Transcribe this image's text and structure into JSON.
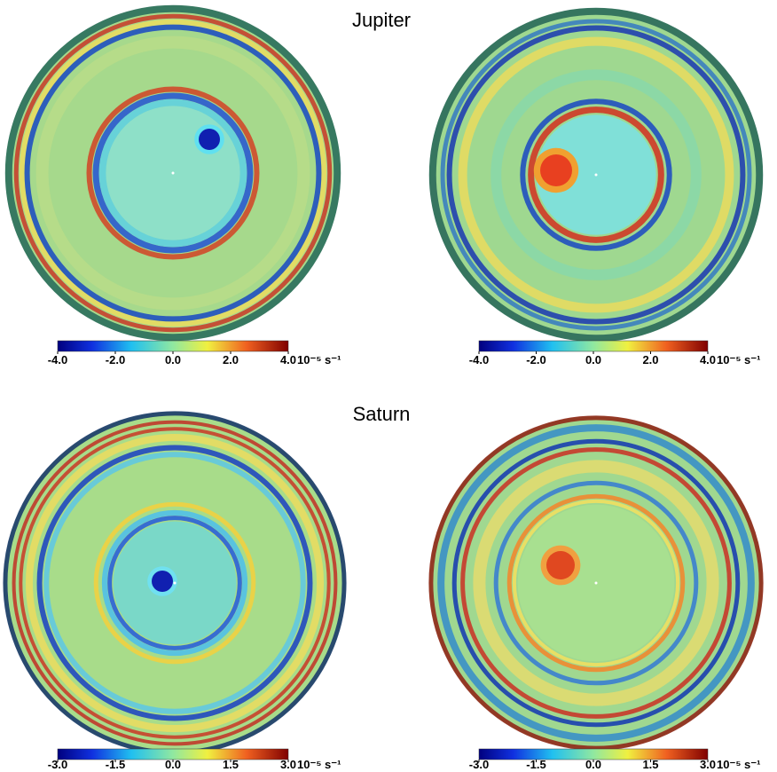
{
  "sections": [
    {
      "title": "Jupiter",
      "panels": [
        {
          "colorbar": {
            "range": [
              -4,
              4
            ],
            "ticks": [
              {
                "value": -4,
                "label": "-4.0"
              },
              {
                "value": -2,
                "label": "-2.0"
              },
              {
                "value": 0,
                "label": "0.0"
              },
              {
                "value": 2,
                "label": "2.0"
              },
              {
                "value": 4,
                "label": "4.0"
              }
            ],
            "unit": "10⁻⁵ s⁻¹"
          }
        },
        {
          "colorbar": {
            "range": [
              -4,
              4
            ],
            "ticks": [
              {
                "value": -4,
                "label": "-4.0"
              },
              {
                "value": -2,
                "label": "-2.0"
              },
              {
                "value": 0,
                "label": "0.0"
              },
              {
                "value": 2,
                "label": "2.0"
              },
              {
                "value": 4,
                "label": "4.0"
              }
            ],
            "unit": "10⁻⁵ s⁻¹"
          }
        }
      ]
    },
    {
      "title": "Saturn",
      "panels": [
        {
          "colorbar": {
            "range": [
              -3,
              3
            ],
            "ticks": [
              {
                "value": -3,
                "label": "-3.0"
              },
              {
                "value": -1.5,
                "label": "-1.5"
              },
              {
                "value": 0,
                "label": "0.0"
              },
              {
                "value": 1.5,
                "label": "1.5"
              },
              {
                "value": 3,
                "label": "3.0"
              }
            ],
            "unit": "10⁻⁵ s⁻¹"
          }
        },
        {
          "colorbar": {
            "range": [
              -3,
              3
            ],
            "ticks": [
              {
                "value": -3,
                "label": "-3.0"
              },
              {
                "value": -1.5,
                "label": "-1.5"
              },
              {
                "value": 0,
                "label": "0.0"
              },
              {
                "value": 1.5,
                "label": "1.5"
              },
              {
                "value": 3,
                "label": "3.0"
              }
            ],
            "unit": "10⁻⁵ s⁻¹"
          }
        }
      ]
    }
  ]
}
